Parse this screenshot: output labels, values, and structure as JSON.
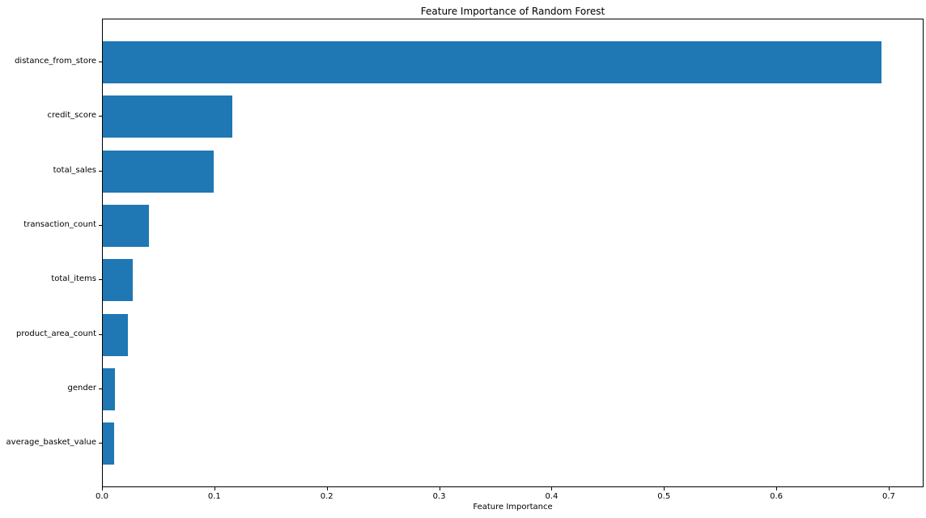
{
  "chart_data": {
    "type": "bar",
    "orientation": "horizontal",
    "title": "Feature Importance of Random Forest",
    "xlabel": "Feature Importance",
    "ylabel": "",
    "categories": [
      "distance_from_store",
      "credit_score",
      "total_sales",
      "transaction_count",
      "total_items",
      "product_area_count",
      "gender",
      "average_basket_value"
    ],
    "values": [
      0.693,
      0.115,
      0.099,
      0.041,
      0.027,
      0.022,
      0.011,
      0.01
    ],
    "xlim": [
      0,
      0.731
    ],
    "xticks": [
      0.0,
      0.1,
      0.2,
      0.3,
      0.4,
      0.5,
      0.6,
      0.7
    ],
    "xtick_labels": [
      "0.0",
      "0.1",
      "0.2",
      "0.3",
      "0.4",
      "0.5",
      "0.6",
      "0.7"
    ],
    "bar_color": "#1f77b4",
    "text_color": "#000000",
    "grid": false,
    "legend": null
  }
}
